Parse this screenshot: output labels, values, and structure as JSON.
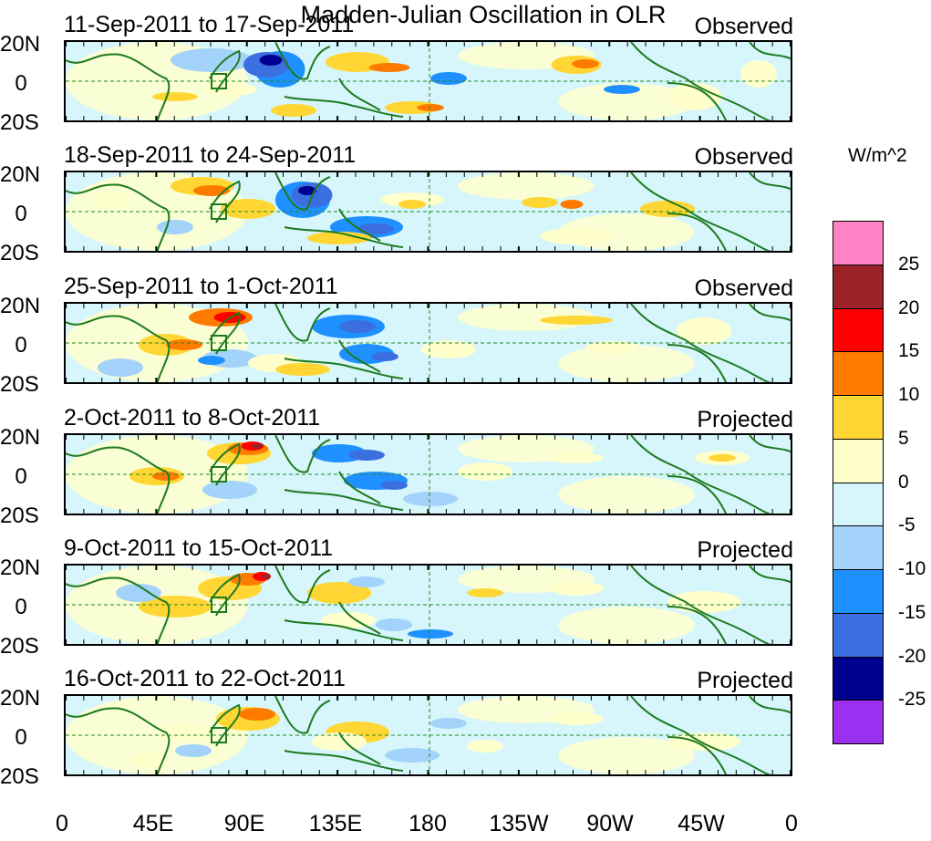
{
  "title": "Madden-Julian Oscillation in OLR",
  "panels": [
    {
      "date_range": "11-Sep-2011 to 17-Sep-2011",
      "status": "Observed"
    },
    {
      "date_range": "18-Sep-2011 to 24-Sep-2011",
      "status": "Observed"
    },
    {
      "date_range": "25-Sep-2011 to 1-Oct-2011",
      "status": "Observed"
    },
    {
      "date_range": "2-Oct-2011 to 8-Oct-2011",
      "status": "Projected"
    },
    {
      "date_range": "9-Oct-2011 to 15-Oct-2011",
      "status": "Projected"
    },
    {
      "date_range": "16-Oct-2011 to 22-Oct-2011",
      "status": "Projected"
    }
  ],
  "lat_labels": [
    "20N",
    "0",
    "20S"
  ],
  "lon_labels": [
    "0",
    "45E",
    "90E",
    "135E",
    "180",
    "135W",
    "90W",
    "45W",
    "0"
  ],
  "colorbar": {
    "unit": "W/m^2",
    "labels": [
      "25",
      "20",
      "15",
      "10",
      "5",
      "0",
      "-5",
      "-10",
      "-15",
      "-20",
      "-25"
    ],
    "colors": [
      "#ff82c6",
      "#9b2226",
      "#ff0000",
      "#ff7b00",
      "#ffd633",
      "#ffffcc",
      "#d6f6fb",
      "#a3d3fa",
      "#1e90ff",
      "#3b6fe0",
      "#000090",
      "#9b30f0"
    ]
  }
}
